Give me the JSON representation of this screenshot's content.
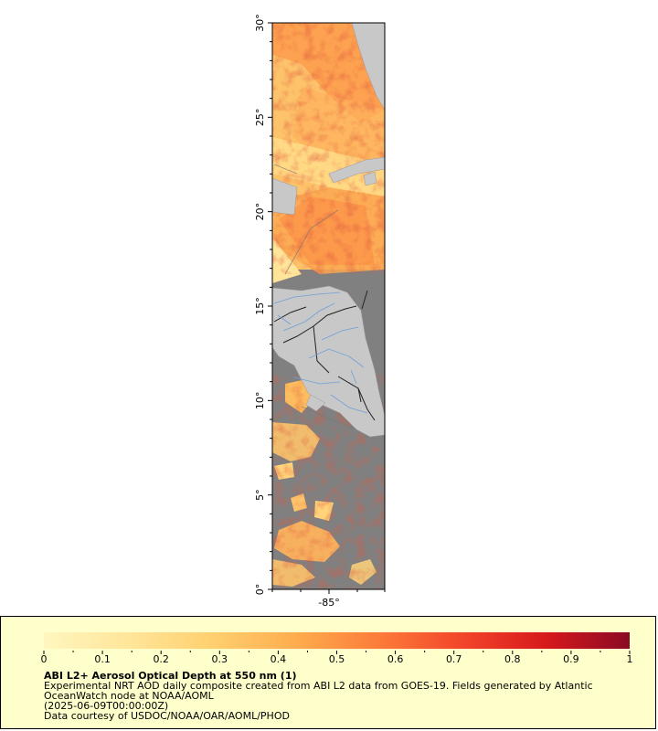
{
  "map": {
    "lat_ticks": [
      "0°",
      "5°",
      "10°",
      "15°",
      "20°",
      "25°",
      "30°"
    ],
    "lon_ticks": [
      "-85°"
    ],
    "colors": {
      "ocean_no_data": "#808080",
      "land": "#c8c8c8",
      "country_border": "#222222",
      "river": "#6fa0d8"
    }
  },
  "colorbar": {
    "min": 0,
    "max": 1,
    "tick_labels": [
      "0",
      "0.1",
      "0.2",
      "0.3",
      "0.4",
      "0.5",
      "0.6",
      "0.7",
      "0.8",
      "0.9",
      "1"
    ],
    "colors": [
      "#fff6c0",
      "#ffe69a",
      "#ffd070",
      "#fdad4e",
      "#fc7c39",
      "#f2452a",
      "#d7191c",
      "#8a0a24"
    ]
  },
  "legend": {
    "title": "ABI L2+ Aerosol Optical Depth at 550 nm (1)",
    "line1": "Experimental NRT AOD daily composite created from ABI L2 data from GOES-19. Fields generated by Atlantic",
    "line2": "OceanWatch node at NOAA/AOML",
    "line3": "(2025-06-09T00:00:00Z)",
    "line4": "Data courtesy of USDOC/NOAA/OAR/AOML/PHOD"
  }
}
